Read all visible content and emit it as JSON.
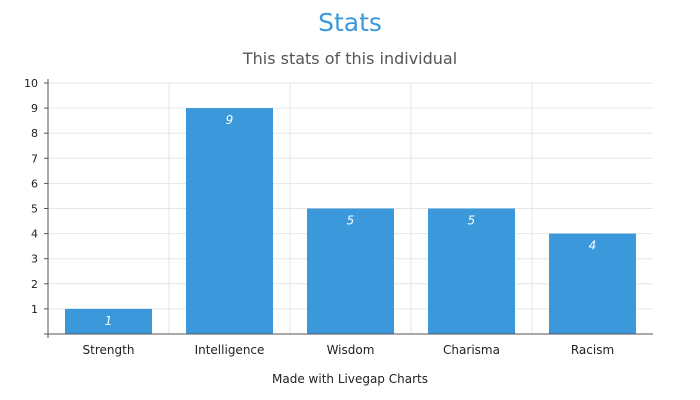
{
  "title": "Stats",
  "subtitle": "This stats of this individual",
  "footer": "Made with Livegap Charts",
  "colors": {
    "title": "#3a98db",
    "bar": "#3a98db",
    "grid": "#e6e6e6",
    "axis": "#555555"
  },
  "chart_data": {
    "type": "bar",
    "title": "Stats",
    "subtitle": "This stats of this individual",
    "categories": [
      "Strength",
      "Intelligence",
      "Wisdom",
      "Charisma",
      "Racism"
    ],
    "values": [
      1,
      9,
      5,
      5,
      4
    ],
    "data_labels": [
      "1",
      "9",
      "5",
      "5",
      "4"
    ],
    "xlabel": "",
    "ylabel": "",
    "ylim": [
      0,
      10
    ],
    "yticks": [
      "1",
      "2",
      "3",
      "4",
      "5",
      "6",
      "7",
      "8",
      "9",
      "10"
    ],
    "grid": true,
    "legend": "none"
  }
}
